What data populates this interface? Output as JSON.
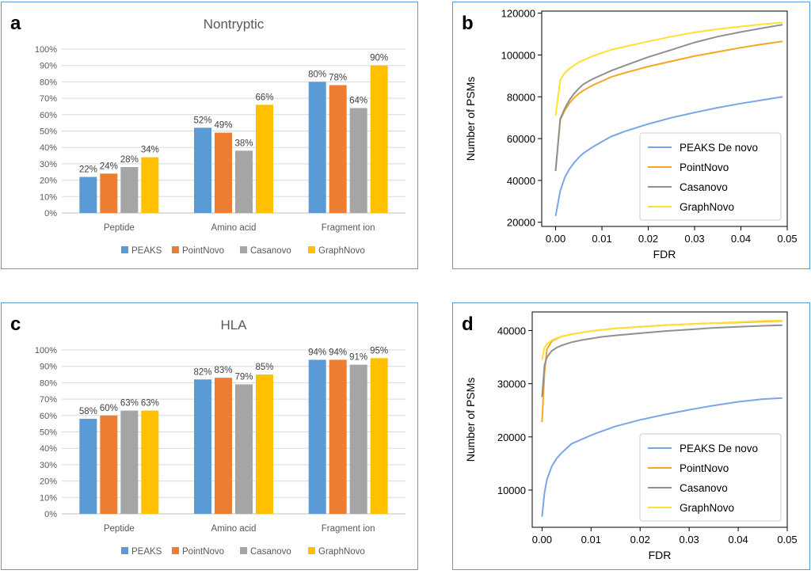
{
  "panels": {
    "a": "a",
    "b": "b",
    "c": "c",
    "d": "d"
  },
  "colors": {
    "PEAKS": "#5b9bd5",
    "PointNovo": "#ed7d31",
    "Casanovo": "#a5a5a5",
    "GraphNovo": "#ffc000",
    "PEAKS De novo": "#7aa6e8",
    "PointNovo_line": "#f5a623",
    "Casanovo_line": "#909090",
    "GraphNovo_line": "#ffe033",
    "frame": "#5b9bd5"
  },
  "chart_data": [
    {
      "id": "a",
      "type": "bar",
      "title": "Nontryptic",
      "categories": [
        "Peptide",
        "Amino acid",
        "Fragment ion"
      ],
      "series": [
        {
          "name": "PEAKS",
          "values": [
            22,
            52,
            80
          ],
          "labels": [
            "22%",
            "52%",
            "80%"
          ]
        },
        {
          "name": "PointNovo",
          "values": [
            24,
            49,
            78
          ],
          "labels": [
            "24%",
            "49%",
            "78%"
          ]
        },
        {
          "name": "Casanovo",
          "values": [
            28,
            38,
            64
          ],
          "labels": [
            "28%",
            "38%",
            "64%"
          ]
        },
        {
          "name": "GraphNovo",
          "values": [
            34,
            66,
            90
          ],
          "labels": [
            "34%",
            "66%",
            "90%"
          ]
        }
      ],
      "ylim": [
        0,
        100
      ],
      "yticks": [
        "0%",
        "10%",
        "20%",
        "30%",
        "40%",
        "50%",
        "60%",
        "70%",
        "80%",
        "90%",
        "100%"
      ],
      "legend": "bottom",
      "grid": true
    },
    {
      "id": "b",
      "type": "line",
      "xlabel": "FDR",
      "ylabel": "Number of PSMs",
      "xlim": [
        -0.003,
        0.05
      ],
      "ylim": [
        18000,
        121000
      ],
      "xticks": [
        "0.00",
        "0.01",
        "0.02",
        "0.03",
        "0.04",
        "0.05"
      ],
      "yticks": [
        "20000",
        "40000",
        "60000",
        "80000",
        "100000",
        "120000"
      ],
      "x": [
        0,
        0.001,
        0.002,
        0.003,
        0.004,
        0.005,
        0.006,
        0.008,
        0.01,
        0.012,
        0.015,
        0.02,
        0.025,
        0.03,
        0.035,
        0.04,
        0.045,
        0.049
      ],
      "series": [
        {
          "name": "PEAKS De novo",
          "values": [
            23000,
            35000,
            41500,
            45500,
            48500,
            51000,
            53000,
            56000,
            58500,
            61000,
            63500,
            67000,
            70000,
            72500,
            74800,
            76800,
            78600,
            80000
          ]
        },
        {
          "name": "PointNovo",
          "values": [
            44500,
            69000,
            73500,
            77000,
            79500,
            81500,
            83000,
            85500,
            87500,
            89500,
            91500,
            94500,
            97000,
            99500,
            101500,
            103500,
            105300,
            106500
          ]
        },
        {
          "name": "Casanovo",
          "values": [
            44500,
            69500,
            74500,
            78500,
            81500,
            84000,
            86000,
            88500,
            90500,
            92500,
            95000,
            99000,
            102500,
            106000,
            108800,
            111000,
            113000,
            114500
          ]
        },
        {
          "name": "GraphNovo",
          "values": [
            71000,
            88000,
            91500,
            93500,
            95000,
            96500,
            97500,
            99500,
            101000,
            102500,
            104000,
            106500,
            108800,
            110800,
            112400,
            113600,
            114800,
            115500
          ]
        }
      ],
      "legend": "bottom-right",
      "grid": false
    },
    {
      "id": "c",
      "type": "bar",
      "title": "HLA",
      "categories": [
        "Peptide",
        "Amino acid",
        "Fragment ion"
      ],
      "series": [
        {
          "name": "PEAKS",
          "values": [
            58,
            82,
            94
          ],
          "labels": [
            "58%",
            "82%",
            "94%"
          ]
        },
        {
          "name": "PointNovo",
          "values": [
            60,
            83,
            94
          ],
          "labels": [
            "60%",
            "83%",
            "94%"
          ]
        },
        {
          "name": "Casanovo",
          "values": [
            63,
            79,
            91
          ],
          "labels": [
            "63%",
            "79%",
            "91%"
          ]
        },
        {
          "name": "GraphNovo",
          "values": [
            63,
            85,
            95
          ],
          "labels": [
            "63%",
            "85%",
            "95%"
          ]
        }
      ],
      "ylim": [
        0,
        100
      ],
      "yticks": [
        "0%",
        "10%",
        "20%",
        "30%",
        "40%",
        "50%",
        "60%",
        "70%",
        "80%",
        "90%",
        "100%"
      ],
      "legend": "bottom",
      "grid": true
    },
    {
      "id": "d",
      "type": "line",
      "xlabel": "FDR",
      "ylabel": "Number of PSMs",
      "xlim": [
        -0.002,
        0.05
      ],
      "ylim": [
        3000,
        43500
      ],
      "xticks": [
        "0.00",
        "0.01",
        "0.02",
        "0.03",
        "0.04",
        "0.05"
      ],
      "yticks": [
        "10000",
        "20000",
        "30000",
        "40000"
      ],
      "x": [
        0,
        0.0005,
        0.001,
        0.002,
        0.003,
        0.004,
        0.006,
        0.008,
        0.01,
        0.012,
        0.015,
        0.02,
        0.025,
        0.03,
        0.035,
        0.04,
        0.045,
        0.049
      ],
      "series": [
        {
          "name": "PEAKS De novo",
          "values": [
            5000,
            9500,
            12000,
            14500,
            16000,
            17000,
            18700,
            19500,
            20300,
            21000,
            22000,
            23200,
            24200,
            25100,
            25900,
            26600,
            27100,
            27300
          ]
        },
        {
          "name": "PointNovo",
          "values": [
            22800,
            32000,
            36500,
            38000,
            38500,
            38900,
            39300,
            39600,
            39900,
            40100,
            40400,
            40700,
            41000,
            41200,
            41400,
            41500,
            41700,
            41800
          ]
        },
        {
          "name": "Casanovo",
          "values": [
            27500,
            33500,
            35000,
            36200,
            36800,
            37200,
            37800,
            38200,
            38500,
            38800,
            39100,
            39500,
            39900,
            40200,
            40500,
            40700,
            40900,
            41000
          ]
        },
        {
          "name": "GraphNovo",
          "values": [
            34500,
            36800,
            37500,
            38200,
            38600,
            38900,
            39300,
            39600,
            39900,
            40100,
            40400,
            40700,
            41000,
            41200,
            41400,
            41600,
            41800,
            41900
          ]
        }
      ],
      "legend": "bottom-right",
      "grid": false
    }
  ]
}
